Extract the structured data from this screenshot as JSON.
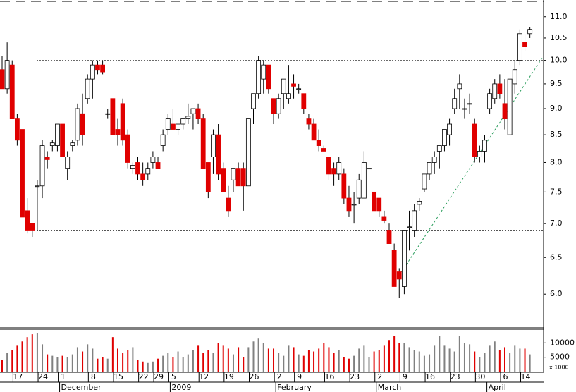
{
  "chart_data": {
    "type": "candlestick",
    "ylog": true,
    "ylim": [
      5.6,
      11.41
    ],
    "yticks": [
      {
        "value": 11,
        "label": "11.0"
      },
      10.5,
      {
        "value": 10,
        "label": "10.0"
      },
      9.5,
      {
        "value": 9,
        "label": "9.0"
      },
      8.5,
      {
        "value": 8,
        "label": "8.0"
      },
      7.5,
      {
        "value": 7,
        "label": "7.0"
      },
      6.5,
      {
        "value": 6,
        "label": "6.0"
      }
    ],
    "up_color": "#ffffff",
    "down_color": "#e00000",
    "reference_lines": [
      10,
      6.9
    ],
    "trendline": {
      "start_index": 79,
      "end_index": 108,
      "values": [
        6.25,
        10.1
      ],
      "color": "#2a9d5c"
    },
    "open": [
      9.8,
      9.4,
      9.9,
      8.8,
      8.6,
      7.2,
      7.0,
      7.6,
      7.6,
      8.1,
      8.3,
      8.3,
      8.7,
      7.9,
      8.3,
      8.4,
      8.9,
      9.2,
      9.6,
      9.9,
      9.9,
      8.9,
      9.2,
      8.6,
      9.1,
      8.5,
      7.9,
      8.0,
      7.8,
      7.8,
      8.0,
      8.0,
      8.3,
      8.6,
      8.7,
      8.6,
      8.7,
      8.8,
      8.9,
      9.0,
      8.8,
      8.0,
      8.1,
      8.5,
      7.9,
      7.4,
      7.7,
      7.9,
      7.9,
      7.6,
      9.0,
      9.3,
      9.6,
      9.9,
      9.2,
      8.9,
      9.3,
      9.2,
      9.5,
      9.4,
      9.3,
      8.8,
      8.7,
      8.4,
      8.25,
      8.1,
      7.9,
      7.8,
      7.8,
      7.4,
      7.3,
      7.4,
      7.4,
      7.9,
      7.5,
      7.4,
      7.1,
      6.9,
      6.6,
      6.3,
      6.1,
      6.95,
      6.9,
      7.3,
      7.55,
      7.8,
      8.0,
      8.2,
      8.3,
      8.5,
      9.0,
      9.4,
      9.0,
      9.1,
      8.7,
      8.1,
      8.2,
      9.0,
      9.2,
      9.5,
      9.1,
      8.5,
      9.5,
      10.0,
      10.4,
      10.6
    ],
    "high": [
      10.1,
      10.4,
      10.0,
      8.9,
      8.6,
      7.4,
      7.0,
      7.7,
      8.4,
      8.2,
      8.4,
      8.7,
      8.7,
      8.2,
      8.4,
      9.1,
      9.3,
      9.7,
      10.0,
      10.0,
      10.0,
      9.0,
      9.2,
      8.8,
      9.2,
      8.6,
      8.0,
      8.1,
      8.0,
      8.0,
      8.2,
      8.1,
      8.6,
      8.9,
      9.0,
      8.7,
      8.8,
      9.1,
      9.0,
      9.1,
      8.9,
      8.0,
      8.6,
      8.7,
      8.0,
      7.6,
      7.9,
      8.0,
      8.0,
      8.8,
      9.3,
      10.1,
      10.0,
      9.9,
      9.2,
      9.3,
      9.6,
      9.9,
      9.7,
      9.5,
      9.3,
      8.9,
      8.8,
      8.6,
      8.3,
      8.1,
      8.0,
      8.1,
      7.9,
      7.6,
      7.5,
      7.8,
      8.2,
      8.0,
      7.5,
      7.4,
      7.2,
      7.0,
      6.7,
      6.35,
      6.9,
      7.2,
      7.3,
      7.4,
      7.8,
      8.0,
      8.2,
      8.3,
      8.6,
      8.8,
      9.4,
      9.7,
      9.2,
      9.3,
      8.8,
      8.3,
      8.5,
      9.4,
      9.6,
      9.7,
      9.6,
      9.6,
      10.0,
      10.7,
      10.6,
      10.75
    ],
    "low": [
      9.4,
      9.3,
      8.8,
      8.3,
      7.1,
      6.85,
      6.8,
      6.9,
      7.4,
      7.9,
      8.2,
      8.2,
      8.1,
      7.7,
      8.2,
      8.3,
      8.3,
      9.1,
      9.2,
      9.7,
      9.7,
      8.8,
      8.5,
      8.3,
      8.3,
      7.9,
      7.8,
      7.7,
      7.6,
      7.7,
      7.9,
      7.9,
      8.2,
      8.5,
      8.6,
      8.5,
      8.6,
      8.7,
      8.6,
      8.7,
      7.9,
      7.4,
      7.8,
      7.7,
      7.5,
      7.1,
      7.5,
      7.6,
      7.2,
      7.6,
      8.7,
      9.2,
      9.3,
      9.3,
      8.7,
      8.8,
      9.0,
      9.1,
      9.2,
      9.3,
      8.9,
      8.6,
      8.4,
      8.2,
      8.2,
      7.7,
      7.6,
      7.7,
      7.3,
      7.1,
      7.0,
      7.3,
      7.4,
      7.8,
      7.2,
      7.1,
      7.0,
      6.7,
      6.1,
      5.95,
      6.0,
      6.6,
      6.8,
      7.2,
      7.5,
      7.7,
      7.8,
      7.9,
      8.2,
      8.3,
      8.9,
      9.0,
      8.8,
      8.9,
      8.0,
      8.0,
      8.0,
      8.9,
      9.1,
      9.2,
      8.6,
      8.5,
      9.3,
      9.9,
      10.2,
      10.5
    ],
    "close": [
      9.4,
      10.0,
      8.8,
      8.4,
      7.1,
      6.9,
      6.9,
      7.6,
      8.3,
      8.05,
      8.35,
      8.7,
      8.1,
      8.1,
      8.35,
      9.0,
      8.5,
      9.6,
      9.9,
      9.8,
      9.75,
      8.9,
      8.5,
      8.5,
      8.4,
      8.0,
      7.95,
      7.8,
      7.7,
      7.9,
      8.1,
      7.9,
      8.5,
      8.8,
      8.6,
      8.7,
      8.8,
      8.85,
      9.0,
      8.8,
      7.9,
      7.5,
      8.5,
      7.8,
      7.5,
      7.2,
      7.9,
      7.6,
      7.6,
      8.8,
      9.3,
      10.0,
      9.9,
      9.4,
      8.9,
      9.2,
      9.6,
      9.3,
      9.45,
      9.4,
      9.0,
      8.7,
      8.4,
      8.3,
      8.2,
      7.8,
      7.8,
      8.0,
      7.4,
      7.2,
      7.3,
      7.7,
      8.0,
      7.9,
      7.2,
      7.2,
      7.05,
      6.7,
      6.1,
      6.2,
      6.9,
      6.95,
      7.2,
      7.35,
      7.8,
      8.0,
      8.1,
      8.3,
      8.6,
      8.7,
      9.2,
      9.5,
      9.0,
      9.1,
      8.1,
      8.2,
      8.4,
      9.3,
      9.5,
      9.3,
      8.8,
      9.6,
      9.8,
      10.6,
      10.3,
      10.7
    ],
    "volume": [
      4000,
      6500,
      7500,
      9000,
      10500,
      12000,
      13000,
      13500,
      9500,
      6000,
      5500,
      5000,
      5500,
      5000,
      6000,
      8500,
      7000,
      9500,
      8000,
      4500,
      5000,
      4500,
      12000,
      8000,
      6500,
      7500,
      8500,
      4000,
      3500,
      3000,
      3500,
      4500,
      5500,
      6500,
      5000,
      7000,
      5000,
      6000,
      7500,
      9000,
      6500,
      7500,
      6500,
      10000,
      9000,
      8000,
      6000,
      8500,
      5000,
      8500,
      10500,
      11500,
      10000,
      8000,
      8000,
      6500,
      5500,
      9000,
      8500,
      6000,
      5500,
      7500,
      7000,
      8000,
      10000,
      8500,
      6500,
      7500,
      5000,
      4500,
      5500,
      8000,
      9000,
      5000,
      7000,
      7500,
      9000,
      11000,
      12500,
      10000,
      10000,
      8500,
      7500,
      7000,
      5500,
      6000,
      9000,
      12500,
      9000,
      8000,
      7000,
      12500,
      10000,
      9500,
      7000,
      5000,
      6500,
      9000,
      10500,
      7500,
      8500,
      6500,
      9000,
      8000,
      8000,
      6000
    ],
    "volume_ylim": [
      0,
      14500
    ],
    "volume_yticks": [
      10000,
      5000
    ],
    "volume_unit": "x 1000",
    "volume_colors": {
      "up": "#808080",
      "down": "#e00000"
    },
    "categories": [
      null,
      null,
      null,
      "17",
      null,
      null,
      null,
      null,
      "24",
      null,
      null,
      null,
      "1",
      null,
      null,
      null,
      null,
      null,
      "8",
      null,
      null,
      null,
      null,
      "15",
      null,
      null,
      null,
      null,
      "22",
      null,
      null,
      "29",
      null,
      null,
      "5",
      null,
      null,
      null,
      null,
      null,
      "12",
      null,
      null,
      null,
      null,
      "19",
      null,
      null,
      null,
      null,
      "26",
      null,
      null,
      null,
      null,
      "2",
      null,
      null,
      null,
      "9",
      null,
      null,
      null,
      null,
      null,
      "16",
      null,
      null,
      null,
      null,
      "23",
      null,
      null,
      null,
      null,
      "2",
      null,
      null,
      null,
      null,
      "9",
      null,
      null,
      null,
      null,
      "16",
      null,
      null,
      null,
      null,
      "23",
      null,
      null,
      null,
      null,
      "30",
      null,
      null,
      null,
      null,
      "6",
      null,
      null,
      null,
      "14",
      null
    ],
    "month_categories": [
      null,
      null,
      null,
      null,
      null,
      null,
      null,
      null,
      null,
      null,
      null,
      null,
      "December",
      null,
      null,
      null,
      null,
      null,
      null,
      null,
      null,
      null,
      null,
      null,
      null,
      null,
      null,
      null,
      null,
      null,
      null,
      null,
      null,
      null,
      "2009",
      null,
      null,
      null,
      null,
      null,
      null,
      null,
      null,
      null,
      null,
      null,
      null,
      null,
      null,
      null,
      null,
      null,
      null,
      null,
      null,
      "February",
      null,
      null,
      null,
      null,
      null,
      null,
      null,
      null,
      null,
      null,
      null,
      null,
      null,
      null,
      null,
      null,
      null,
      null,
      null,
      "March",
      null,
      null,
      null,
      null,
      null,
      null,
      null,
      null,
      null,
      null,
      null,
      null,
      null,
      null,
      null,
      null,
      null,
      null,
      null,
      null,
      null,
      "April",
      null,
      null,
      null,
      null,
      null,
      null,
      null,
      null
    ]
  }
}
